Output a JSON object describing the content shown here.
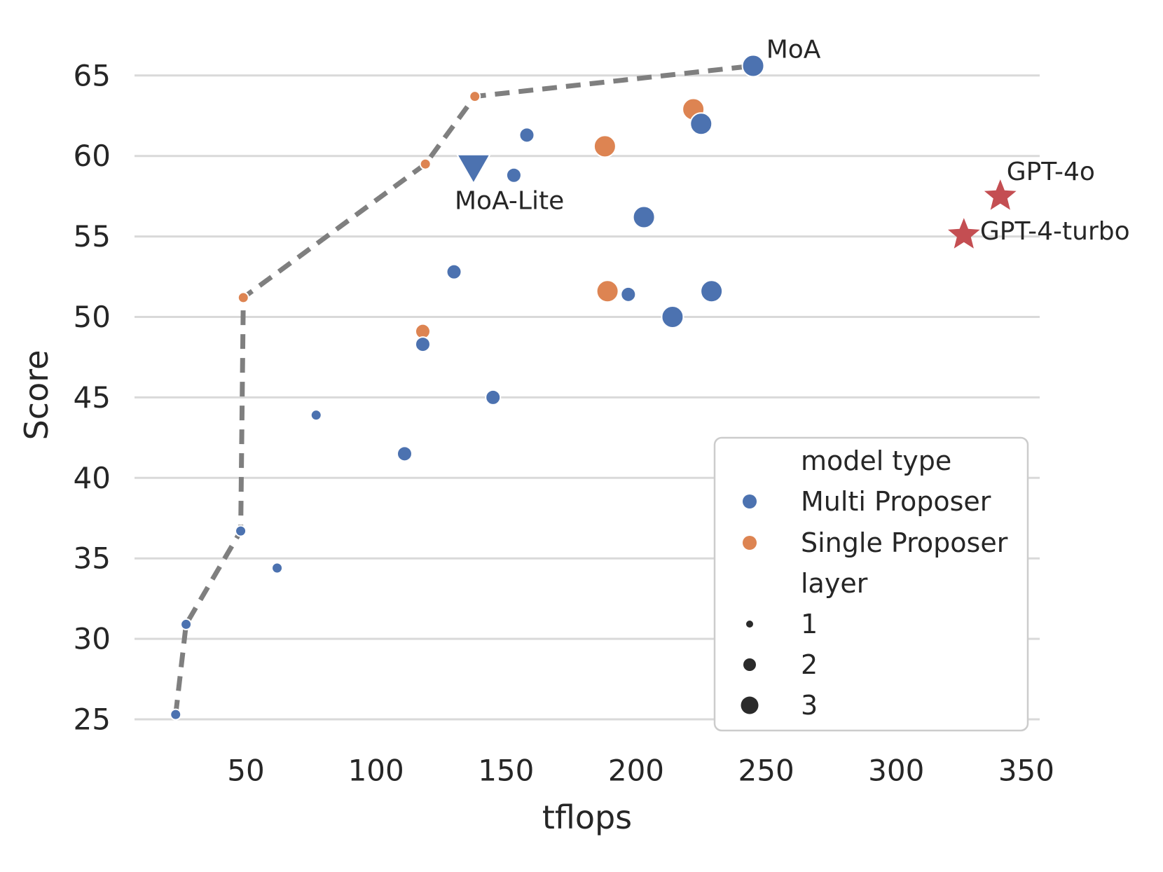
{
  "figure": {
    "background": "#ffffff"
  },
  "chart_data": {
    "type": "scatter",
    "title": "",
    "xlabel": "tflops",
    "ylabel": "Score",
    "xticks": [
      50,
      100,
      150,
      200,
      250,
      300,
      350
    ],
    "yticks": [
      25,
      30,
      35,
      40,
      45,
      50,
      55,
      60,
      65
    ],
    "xlim": [
      7,
      355
    ],
    "ylim": [
      23.5,
      67.7
    ],
    "grid": "horizontal-only",
    "legend_position": "lower right",
    "series": [
      {
        "name": "Single Proposer",
        "color": "#dd8452",
        "marker": "circle",
        "points": [
          {
            "x": 49,
            "y": 51.2,
            "layer": 1
          },
          {
            "x": 118,
            "y": 49.1,
            "layer": 2
          },
          {
            "x": 119,
            "y": 59.5,
            "layer": 1
          },
          {
            "x": 138,
            "y": 63.7,
            "layer": 1
          },
          {
            "x": 188,
            "y": 60.6,
            "layer": 3
          },
          {
            "x": 189,
            "y": 51.6,
            "layer": 3
          },
          {
            "x": 222,
            "y": 62.9,
            "layer": 3
          }
        ]
      },
      {
        "name": "Multi Proposer",
        "color": "#4c72b0",
        "marker": "circle",
        "points": [
          {
            "x": 23,
            "y": 25.3,
            "layer": 1
          },
          {
            "x": 27,
            "y": 30.9,
            "layer": 1
          },
          {
            "x": 48,
            "y": 36.7,
            "layer": 1
          },
          {
            "x": 62,
            "y": 34.4,
            "layer": 1
          },
          {
            "x": 77,
            "y": 43.9,
            "layer": 1
          },
          {
            "x": 111,
            "y": 41.5,
            "layer": 2
          },
          {
            "x": 118,
            "y": 48.3,
            "layer": 2
          },
          {
            "x": 130,
            "y": 52.8,
            "layer": 2
          },
          {
            "x": 145,
            "y": 45.0,
            "layer": 2
          },
          {
            "x": 153,
            "y": 58.8,
            "layer": 2
          },
          {
            "x": 158,
            "y": 61.3,
            "layer": 2
          },
          {
            "x": 197,
            "y": 51.4,
            "layer": 2
          },
          {
            "x": 203,
            "y": 56.2,
            "layer": 3
          },
          {
            "x": 214,
            "y": 50.0,
            "layer": 3
          },
          {
            "x": 225,
            "y": 62.0,
            "layer": 3
          },
          {
            "x": 229,
            "y": 51.6,
            "layer": 3
          },
          {
            "x": 245,
            "y": 65.6,
            "layer": 3
          }
        ]
      }
    ],
    "pareto_frontier": {
      "style": "dashed",
      "color": "#7f7f7f",
      "points": [
        [
          23,
          25.3
        ],
        [
          27,
          30.9
        ],
        [
          48,
          36.7
        ],
        [
          49,
          51.2
        ],
        [
          119,
          59.5
        ],
        [
          138,
          63.7
        ],
        [
          245,
          65.6
        ]
      ]
    },
    "special_points": [
      {
        "label": "MoA-Lite",
        "shape": "triangle-down",
        "color": "#4c72b0",
        "x": 137.5,
        "y": 59.3
      },
      {
        "label": "GPT-4o",
        "shape": "star",
        "color": "#c44e52",
        "x": 340,
        "y": 57.5
      },
      {
        "label": "GPT-4-turbo",
        "shape": "star",
        "color": "#c44e52",
        "x": 326,
        "y": 55.1
      }
    ],
    "annotations": [
      {
        "text": "MoA",
        "x": 260.5,
        "y": 66.6
      },
      {
        "text": "MoA-Lite",
        "x": 151.3,
        "y": 57.2
      },
      {
        "text": "GPT-4o",
        "x": 359.4,
        "y": 59.0
      },
      {
        "text": "GPT-4-turbo",
        "x": 361.0,
        "y": 55.3
      }
    ]
  },
  "legend": {
    "color_section": {
      "header": "model type",
      "entries": [
        {
          "label": "Multi Proposer",
          "color": "#4c72b0"
        },
        {
          "label": "Single Proposer",
          "color": "#dd8452"
        }
      ]
    },
    "size_section": {
      "header": "layer",
      "marker_color": "#2b2b2b",
      "entries": [
        {
          "label": "1",
          "layer": 1
        },
        {
          "label": "2",
          "layer": 2
        },
        {
          "label": "3",
          "layer": 3
        }
      ]
    }
  },
  "colors": {
    "multi_proposer": "#4c72b0",
    "single_proposer": "#dd8452",
    "reference_star": "#c44e52",
    "frontier_line": "#7f7f7f",
    "gridline": "#d9d9d9",
    "text": "#262626",
    "legend_border": "#cccccc"
  }
}
